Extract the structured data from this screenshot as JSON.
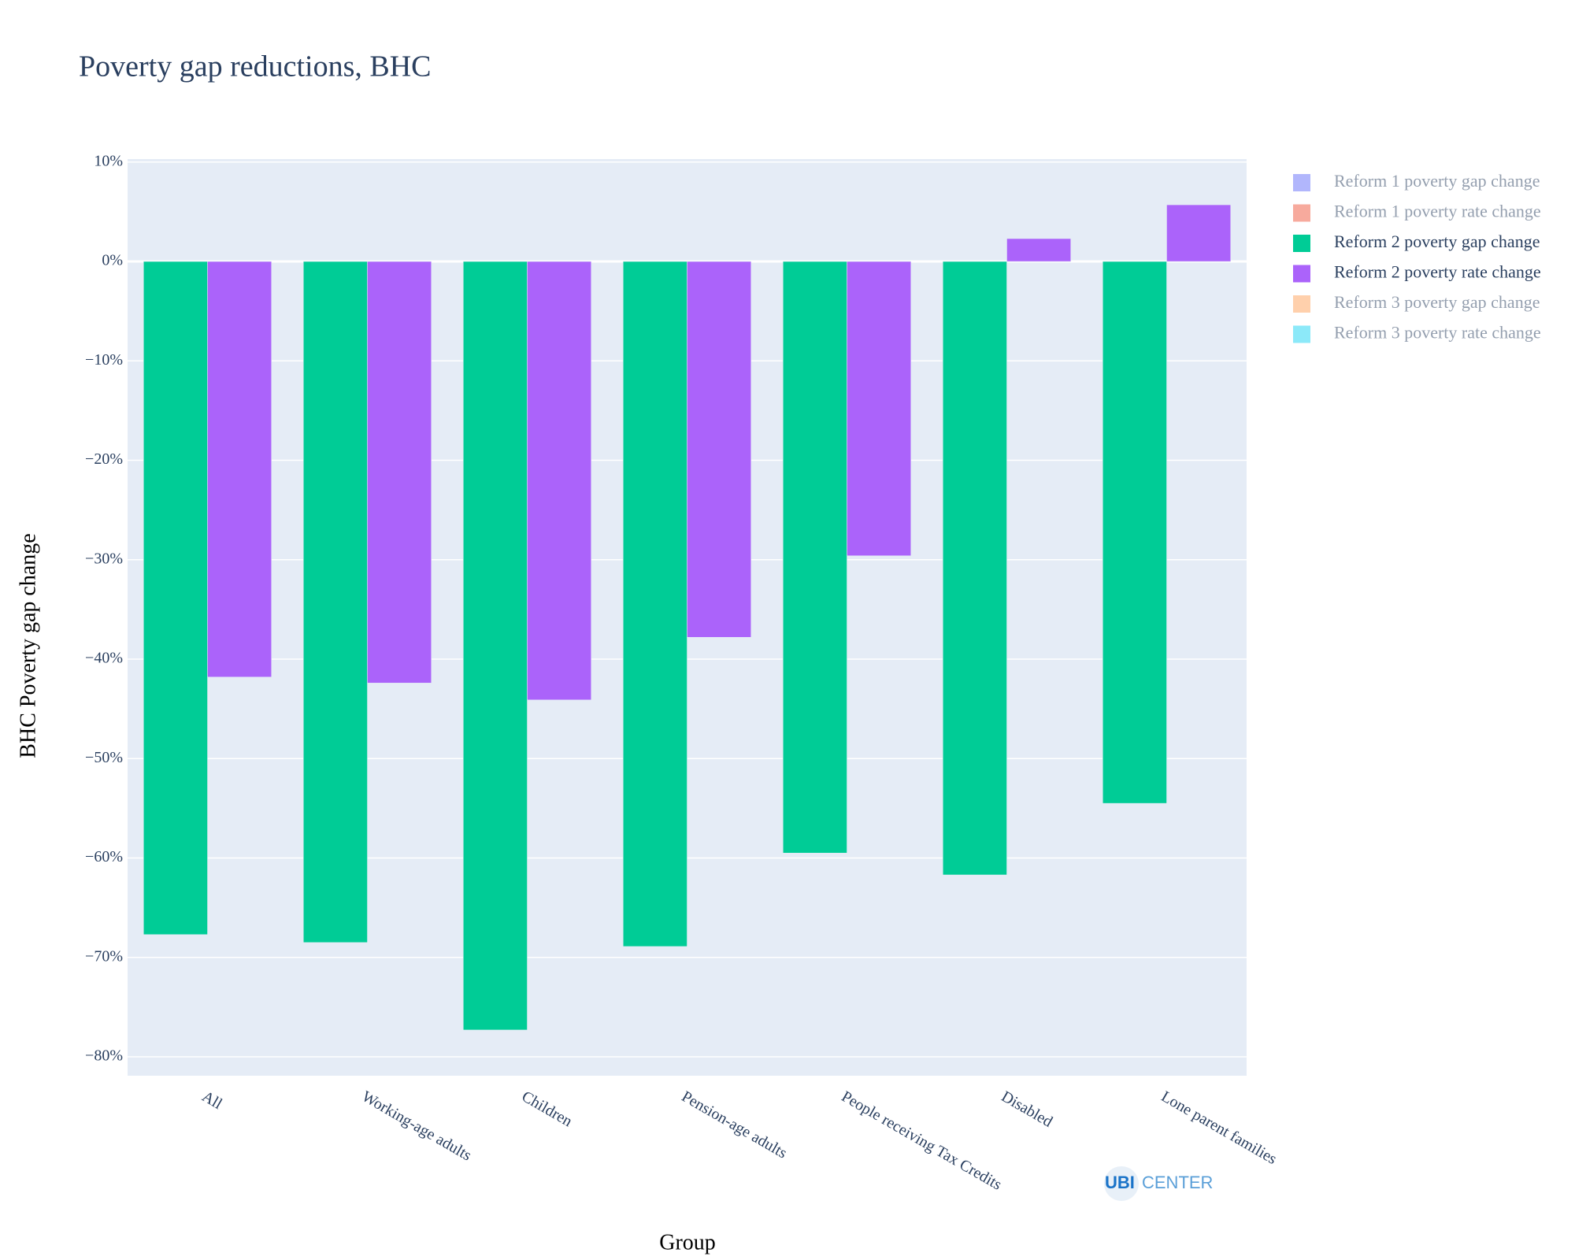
{
  "chart_data": {
    "type": "bar",
    "title": "Poverty gap reductions, BHC",
    "x_label": "Group",
    "y_label": "BHC Poverty gap change",
    "categories": [
      "All",
      "Working-age adults",
      "Children",
      "Pension-age adults",
      "People receiving Tax Credits",
      "Disabled",
      "Lone parent families"
    ],
    "series": [
      {
        "name": "Reform 1 poverty gap change",
        "color": "#636efa",
        "visible": "legendonly"
      },
      {
        "name": "Reform 1 poverty rate change",
        "color": "#EF553B",
        "visible": "legendonly"
      },
      {
        "name": "Reform 2 poverty gap change",
        "color": "#00cc96",
        "visible": true,
        "values": [
          -67.7,
          -68.5,
          -77.3,
          -68.9,
          -59.5,
          -61.7,
          -54.5
        ]
      },
      {
        "name": "Reform 2 poverty rate change",
        "color": "#ab63fa",
        "visible": true,
        "values": [
          -41.8,
          -42.4,
          -44.1,
          -37.8,
          -29.6,
          2.3,
          5.7
        ]
      },
      {
        "name": "Reform 3 poverty gap change",
        "color": "#FFA15A",
        "visible": "legendonly"
      },
      {
        "name": "Reform 3 poverty rate change",
        "color": "#19d3f3",
        "visible": "legendonly"
      }
    ],
    "ylim": [
      -81.9,
      10.3
    ],
    "yticks": [
      {
        "value": 10,
        "label": "10%"
      },
      {
        "value": 0,
        "label": "0%"
      },
      {
        "value": -10,
        "label": "−10%"
      },
      {
        "value": -20,
        "label": "−20%"
      },
      {
        "value": -30,
        "label": "−30%"
      },
      {
        "value": -40,
        "label": "−40%"
      },
      {
        "value": -50,
        "label": "−50%"
      },
      {
        "value": -60,
        "label": "−60%"
      },
      {
        "value": -70,
        "label": "−70%"
      },
      {
        "value": -80,
        "label": "−80%"
      }
    ],
    "grid": true,
    "legend": "right",
    "logo": {
      "bold": "UBI",
      "text": "CENTER"
    }
  }
}
